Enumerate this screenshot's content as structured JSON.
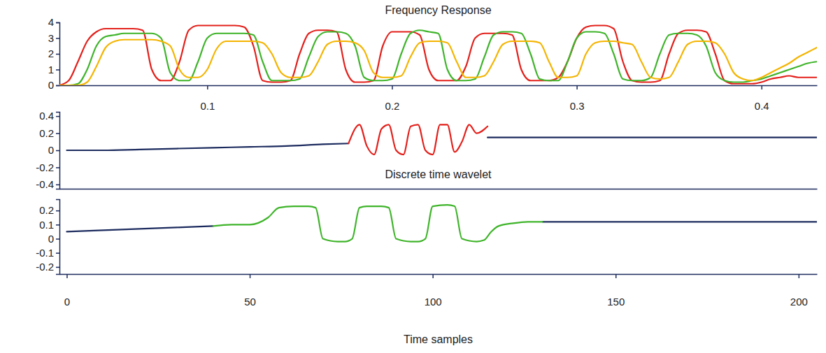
{
  "chart_data": [
    {
      "type": "line",
      "title": "Frequency Response",
      "x": [
        0.02,
        0.025,
        0.03,
        0.035,
        0.04,
        0.045,
        0.05,
        0.055,
        0.06,
        0.065,
        0.07,
        0.075,
        0.08,
        0.085,
        0.09,
        0.095,
        0.1,
        0.105,
        0.11,
        0.115,
        0.12,
        0.125,
        0.13,
        0.135,
        0.14,
        0.145,
        0.15,
        0.155,
        0.16,
        0.165,
        0.17,
        0.175,
        0.18,
        0.185,
        0.19,
        0.195,
        0.2,
        0.205,
        0.21,
        0.215,
        0.22,
        0.225,
        0.23,
        0.235,
        0.24,
        0.245,
        0.25,
        0.255,
        0.26,
        0.265,
        0.27,
        0.275,
        0.28,
        0.285,
        0.29,
        0.295,
        0.3,
        0.305,
        0.31,
        0.315,
        0.32,
        0.325,
        0.33,
        0.335,
        0.34,
        0.345,
        0.35,
        0.355,
        0.36,
        0.365,
        0.37,
        0.375,
        0.38,
        0.385,
        0.39,
        0.395,
        0.4,
        0.405,
        0.41,
        0.415,
        0.42,
        0.425,
        0.43
      ],
      "series": [
        {
          "color": "#e3201b",
          "values": [
            0,
            0.3,
            1.5,
            2.8,
            3.4,
            3.6,
            3.6,
            3.6,
            3.6,
            3.5,
            1.0,
            0.3,
            0.3,
            1.5,
            3.5,
            3.8,
            3.8,
            3.8,
            3.8,
            3.8,
            3.7,
            2.5,
            0.3,
            0.2,
            0.2,
            0.3,
            2.0,
            3.3,
            3.5,
            3.5,
            3.4,
            1.0,
            0.2,
            0.2,
            0.3,
            2.5,
            3.4,
            3.4,
            3.4,
            3.2,
            1.0,
            0.3,
            0.3,
            0.3,
            1.2,
            3.0,
            3.3,
            3.3,
            3.3,
            3.2,
            1.0,
            0.3,
            0.3,
            0.3,
            0.5,
            1.5,
            3.0,
            3.7,
            3.8,
            3.8,
            3.6,
            1.5,
            0.3,
            0.2,
            0.2,
            0.3,
            2.0,
            3.3,
            3.5,
            3.5,
            3.4,
            2.0,
            0.3,
            0.1,
            0.1,
            0.1,
            0.2,
            0.4,
            0.5,
            0.6,
            0.5,
            0.5,
            0.5
          ]
        },
        {
          "color": "#3fb42a",
          "values": [
            0,
            0,
            0.1,
            1.0,
            2.5,
            3.1,
            3.2,
            3.3,
            3.3,
            3.3,
            3.3,
            3.0,
            0.8,
            0.3,
            0.3,
            1.5,
            3.0,
            3.3,
            3.3,
            3.3,
            3.3,
            3.2,
            1.5,
            0.3,
            0.3,
            0.3,
            0.4,
            1.8,
            3.1,
            3.4,
            3.4,
            3.3,
            2.5,
            0.5,
            0.3,
            0.3,
            0.4,
            2.0,
            3.3,
            3.5,
            3.4,
            3.3,
            1.0,
            0.3,
            0.3,
            0.4,
            1.8,
            3.2,
            3.4,
            3.4,
            3.3,
            2.0,
            0.4,
            0.3,
            0.3,
            1.5,
            3.0,
            3.4,
            3.4,
            3.3,
            2.0,
            0.4,
            0.3,
            0.3,
            0.5,
            2.0,
            3.2,
            3.3,
            3.3,
            3.2,
            2.5,
            0.8,
            0.3,
            0.2,
            0.2,
            0.3,
            0.4,
            0.6,
            0.8,
            1.0,
            1.2,
            1.4,
            1.5
          ]
        },
        {
          "color": "#f4b400",
          "values": [
            0,
            0,
            0,
            0.2,
            1.2,
            2.4,
            2.8,
            2.9,
            2.9,
            2.9,
            2.9,
            2.8,
            2.5,
            1.0,
            0.5,
            0.5,
            1.0,
            2.3,
            2.8,
            2.8,
            2.8,
            2.8,
            2.7,
            2.0,
            0.8,
            0.5,
            0.5,
            0.6,
            1.5,
            2.6,
            2.8,
            2.8,
            2.7,
            2.2,
            0.8,
            0.5,
            0.5,
            0.6,
            1.8,
            2.7,
            2.8,
            2.8,
            2.7,
            1.5,
            0.5,
            0.5,
            0.6,
            1.5,
            2.6,
            2.8,
            2.8,
            2.8,
            2.7,
            1.5,
            0.5,
            0.5,
            0.6,
            2.0,
            2.7,
            2.8,
            2.8,
            2.7,
            2.6,
            1.5,
            0.5,
            0.4,
            0.5,
            1.5,
            2.6,
            2.8,
            2.8,
            2.7,
            2.0,
            0.8,
            0.4,
            0.3,
            0.5,
            0.8,
            1.1,
            1.4,
            1.8,
            2.1,
            2.4
          ]
        }
      ],
      "xlim": [
        0.02,
        0.43
      ],
      "xticks": [
        0.1,
        0.2,
        0.3,
        0.4
      ],
      "ylim": [
        0,
        4
      ],
      "yticks": [
        0,
        1,
        2,
        3,
        4
      ]
    },
    {
      "type": "line",
      "x": [
        0,
        10,
        20,
        30,
        40,
        50,
        60,
        70,
        77,
        80,
        82,
        84,
        86,
        88,
        90,
        92,
        94,
        96,
        98,
        100,
        102,
        104,
        106,
        108,
        110,
        112,
        115,
        120,
        130,
        140,
        150,
        160,
        170,
        180,
        190,
        200,
        205
      ],
      "series": [
        {
          "color": "#1c2b5e",
          "values": [
            0,
            0,
            0.01,
            0.02,
            0.03,
            0.04,
            0.05,
            0.07,
            0.08,
            null,
            null,
            null,
            null,
            null,
            null,
            null,
            null,
            null,
            null,
            null,
            null,
            null,
            null,
            null,
            null,
            null,
            0.15,
            0.15,
            0.15,
            0.15,
            0.15,
            0.15,
            0.15,
            0.15,
            0.15,
            0.15,
            0.15
          ]
        },
        {
          "color": "#e3201b",
          "values": [
            null,
            null,
            null,
            null,
            null,
            null,
            null,
            null,
            0.08,
            0.3,
            0.05,
            -0.05,
            0.25,
            0.3,
            0.0,
            -0.05,
            0.28,
            0.3,
            0.0,
            -0.05,
            0.3,
            0.3,
            -0.02,
            0.1,
            0.3,
            0.2,
            0.28,
            null,
            null,
            null,
            null,
            null,
            null,
            null,
            null,
            null,
            null
          ]
        }
      ],
      "xlim": [
        -2,
        205
      ],
      "ylim": [
        -0.45,
        0.45
      ],
      "yticks": [
        -0.4,
        -0.2,
        0,
        0.2,
        0.4
      ],
      "tick_labels": "y"
    },
    {
      "type": "line",
      "title": "Discrete time wavelet",
      "xlabel": "Time samples",
      "x": [
        0,
        10,
        20,
        30,
        40,
        45,
        50,
        55,
        58,
        62,
        66,
        68,
        70,
        74,
        76,
        78,
        80,
        82,
        86,
        88,
        90,
        94,
        96,
        98,
        100,
        104,
        106,
        108,
        112,
        114,
        116,
        118,
        122,
        126,
        130,
        140,
        150,
        160,
        170,
        180,
        190,
        200,
        205
      ],
      "series": [
        {
          "color": "#1c2b5e",
          "values": [
            0.05,
            0.06,
            0.07,
            0.08,
            0.09,
            null,
            null,
            null,
            null,
            null,
            null,
            null,
            null,
            null,
            null,
            null,
            null,
            null,
            null,
            null,
            null,
            null,
            null,
            null,
            null,
            null,
            null,
            null,
            null,
            null,
            null,
            null,
            null,
            null,
            0.12,
            0.12,
            0.12,
            0.12,
            0.12,
            0.12,
            0.12,
            0.12,
            0.12
          ]
        },
        {
          "color": "#3fb42a",
          "values": [
            null,
            null,
            null,
            null,
            0.09,
            0.1,
            0.1,
            0.15,
            0.22,
            0.23,
            0.23,
            0.22,
            0.0,
            -0.02,
            -0.02,
            0.0,
            0.22,
            0.23,
            0.23,
            0.22,
            0.0,
            -0.02,
            -0.02,
            0.0,
            0.23,
            0.24,
            0.23,
            0.0,
            -0.02,
            -0.01,
            0.05,
            0.09,
            0.11,
            0.12,
            0.12,
            null,
            null,
            null,
            null,
            null,
            null,
            null,
            null
          ]
        }
      ],
      "xlim": [
        -2,
        205
      ],
      "xticks": [
        0,
        50,
        100,
        150,
        200
      ],
      "ylim": [
        -0.25,
        0.28
      ],
      "yticks": [
        -0.2,
        -0.1,
        0,
        0.1,
        0.2
      ]
    }
  ]
}
